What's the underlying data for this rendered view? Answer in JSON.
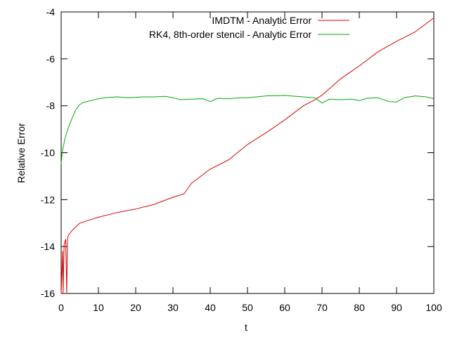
{
  "chart_data": {
    "type": "line",
    "title": "",
    "xlabel": "t",
    "ylabel": "Relative Error",
    "xlim": [
      0,
      100
    ],
    "ylim": [
      -16,
      -4
    ],
    "x_ticks": [
      0,
      10,
      20,
      30,
      40,
      50,
      60,
      70,
      80,
      90,
      100
    ],
    "y_ticks": [
      -16,
      -14,
      -12,
      -10,
      -8,
      -6,
      -4
    ],
    "legend_position": "top-right",
    "grid": false,
    "series": [
      {
        "name": "IMDTM - Analytic Error",
        "color": "#dd0000",
        "x": [
          0,
          0.4,
          0.5,
          0.8,
          1.2,
          1.5,
          1.7,
          2,
          3,
          5,
          8,
          10,
          15,
          20,
          25,
          30,
          33,
          35,
          40,
          45,
          50,
          55,
          60,
          65,
          68,
          70,
          75,
          80,
          85,
          90,
          95,
          100
        ],
        "y": [
          -16.0,
          -14.2,
          -16.0,
          -13.9,
          -13.7,
          -16.0,
          -13.65,
          -13.5,
          -13.3,
          -13.0,
          -12.85,
          -12.75,
          -12.55,
          -12.4,
          -12.2,
          -11.9,
          -11.75,
          -11.3,
          -10.7,
          -10.3,
          -9.65,
          -9.15,
          -8.6,
          -8.0,
          -7.75,
          -7.55,
          -6.85,
          -6.3,
          -5.7,
          -5.25,
          -4.85,
          -4.25
        ]
      },
      {
        "name": "RK4, 8th-order stencil - Analytic Error",
        "color": "#00aa00",
        "x": [
          0,
          0.2,
          0.5,
          1,
          2,
          3,
          4,
          5,
          6,
          8,
          10,
          12,
          15,
          18,
          20,
          22,
          25,
          28,
          30,
          32,
          35,
          38,
          40,
          42,
          45,
          48,
          50,
          55,
          60,
          65,
          68,
          70,
          72,
          75,
          78,
          80,
          82,
          85,
          88,
          90,
          92,
          95,
          98,
          100
        ],
        "y": [
          -10.5,
          -10.1,
          -9.8,
          -9.4,
          -8.9,
          -8.5,
          -8.15,
          -7.95,
          -7.85,
          -7.78,
          -7.7,
          -7.65,
          -7.62,
          -7.66,
          -7.64,
          -7.62,
          -7.62,
          -7.6,
          -7.66,
          -7.74,
          -7.72,
          -7.7,
          -7.82,
          -7.68,
          -7.7,
          -7.66,
          -7.66,
          -7.58,
          -7.56,
          -7.62,
          -7.66,
          -7.88,
          -7.72,
          -7.74,
          -7.72,
          -7.78,
          -7.68,
          -7.66,
          -7.82,
          -7.84,
          -7.66,
          -7.58,
          -7.62,
          -7.7
        ]
      }
    ]
  }
}
